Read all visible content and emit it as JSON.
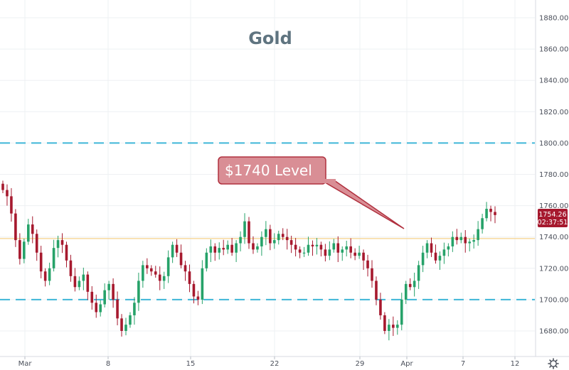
{
  "chart_data": {
    "type": "candlestick",
    "title": "Gold",
    "ylim": [
      1670,
      1890
    ],
    "y_ticks": [
      "1680.00",
      "1700.00",
      "1720.00",
      "1740.00",
      "1760.00",
      "1780.00",
      "1800.00",
      "1820.00",
      "1840.00",
      "1860.00",
      "1880.00"
    ],
    "x_ticks": [
      "Mar",
      "8",
      "15",
      "22",
      "29",
      "Apr",
      "7",
      "12"
    ],
    "reference_lines": {
      "dashed_upper": 1800,
      "dashed_lower": 1700,
      "level_line": 1739
    },
    "annotation": {
      "label": "$1740 Level"
    },
    "last_price": {
      "value": "1754.26",
      "countdown": "02:37:51"
    },
    "colors": {
      "up": "#26a269",
      "down": "#a6192e",
      "dashed": "#3fb6d8",
      "level": "#f6d28a",
      "callout_fill": "#d98e95",
      "callout_stroke": "#b0303e",
      "price_tag": "#a6192e"
    },
    "candles_close": [
      1770,
      1766,
      1755,
      1738,
      1726,
      1737,
      1748,
      1742,
      1730,
      1718,
      1712,
      1720,
      1733,
      1738,
      1735,
      1725,
      1715,
      1708,
      1712,
      1716,
      1705,
      1698,
      1692,
      1697,
      1706,
      1710,
      1700,
      1688,
      1680,
      1684,
      1690,
      1698,
      1712,
      1722,
      1720,
      1718,
      1716,
      1712,
      1715,
      1727,
      1735,
      1730,
      1722,
      1718,
      1710,
      1702,
      1700,
      1720,
      1730,
      1734,
      1730,
      1733,
      1732,
      1735,
      1730,
      1736,
      1740,
      1750,
      1736,
      1732,
      1734,
      1740,
      1745,
      1736,
      1738,
      1742,
      1740,
      1738,
      1735,
      1732,
      1730,
      1730,
      1735,
      1734,
      1735,
      1732,
      1728,
      1732,
      1736,
      1730,
      1732,
      1734,
      1730,
      1728,
      1730,
      1725,
      1720,
      1712,
      1700,
      1690,
      1680,
      1684,
      1682,
      1684,
      1700,
      1710,
      1708,
      1712,
      1722,
      1730,
      1736,
      1730,
      1725,
      1728,
      1732,
      1734,
      1740,
      1738,
      1740,
      1736,
      1737,
      1738,
      1745,
      1752,
      1758,
      1756,
      1754
    ]
  },
  "footer": {
    "settings_icon": "gear-icon"
  }
}
